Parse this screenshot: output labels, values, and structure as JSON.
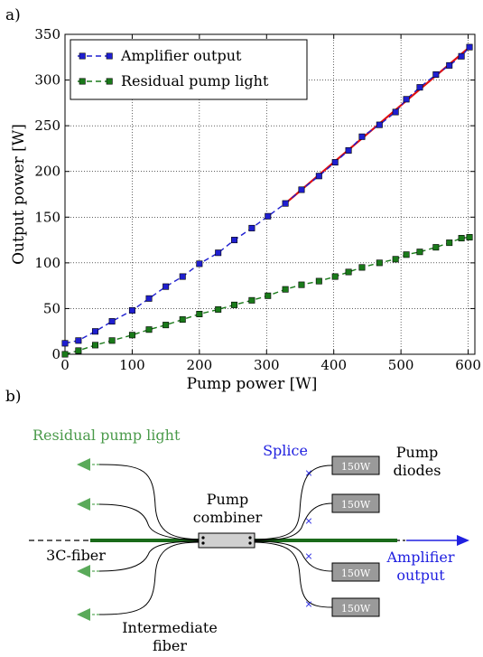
{
  "panel_a_label": "a)",
  "panel_b_label": "b)",
  "chart_data": {
    "type": "line",
    "title": "",
    "xlabel": "Pump power [W]",
    "ylabel": "Output power [W]",
    "xlim": [
      0,
      610
    ],
    "ylim": [
      0,
      350
    ],
    "xticks": [
      0,
      100,
      200,
      300,
      400,
      500,
      600
    ],
    "yticks": [
      0,
      50,
      100,
      150,
      200,
      250,
      300,
      350
    ],
    "grid": true,
    "legend_position": "top-left",
    "series": [
      {
        "name": "Amplifier output",
        "color": "#1f1fd0",
        "marker": "square",
        "line": "dashed",
        "x": [
          0,
          20,
          45,
          70,
          100,
          125,
          150,
          175,
          200,
          228,
          252,
          278,
          302,
          328,
          352,
          378,
          402,
          422,
          442,
          468,
          492,
          508,
          528,
          552,
          572,
          590,
          602
        ],
        "y": [
          12,
          15,
          25,
          36,
          48,
          61,
          74,
          85,
          99,
          111,
          125,
          138,
          151,
          165,
          180,
          195,
          210,
          223,
          238,
          251,
          265,
          279,
          292,
          306,
          316,
          326,
          336
        ]
      },
      {
        "name": "Residual pump light",
        "color": "#1a7a1a",
        "marker": "square",
        "line": "dashed",
        "x": [
          0,
          20,
          45,
          70,
          100,
          125,
          150,
          175,
          200,
          228,
          252,
          278,
          302,
          328,
          352,
          378,
          402,
          422,
          442,
          468,
          492,
          508,
          528,
          552,
          572,
          590,
          602
        ],
        "y": [
          0,
          4,
          10,
          15,
          21,
          27,
          32,
          38,
          44,
          49,
          54,
          59,
          64,
          71,
          76,
          80,
          85,
          90,
          95,
          100,
          104,
          109,
          112,
          117,
          122,
          127,
          128
        ]
      }
    ],
    "fit_line": {
      "color": "#e01010",
      "x": [
        328,
        602
      ],
      "y": [
        165,
        336
      ]
    }
  },
  "diagram": {
    "residual_label": "Residual pump light",
    "splice_label": "Splice",
    "diode_label": "150W",
    "pump_diodes_label_1": "Pump",
    "pump_diodes_label_2": "diodes",
    "combiner_label_1": "Pump",
    "combiner_label_2": "combiner",
    "fiber_3c_label": "3C-fiber",
    "amp_label_1": "Amplifier",
    "amp_label_2": "output",
    "intermediate_label_1": "Intermediate",
    "intermediate_label_2": "fiber",
    "colors": {
      "green": "#5aaa5a",
      "blue": "#2020e0",
      "dark_green": "#1a6a1a",
      "diode": "#9a9a9a"
    }
  }
}
